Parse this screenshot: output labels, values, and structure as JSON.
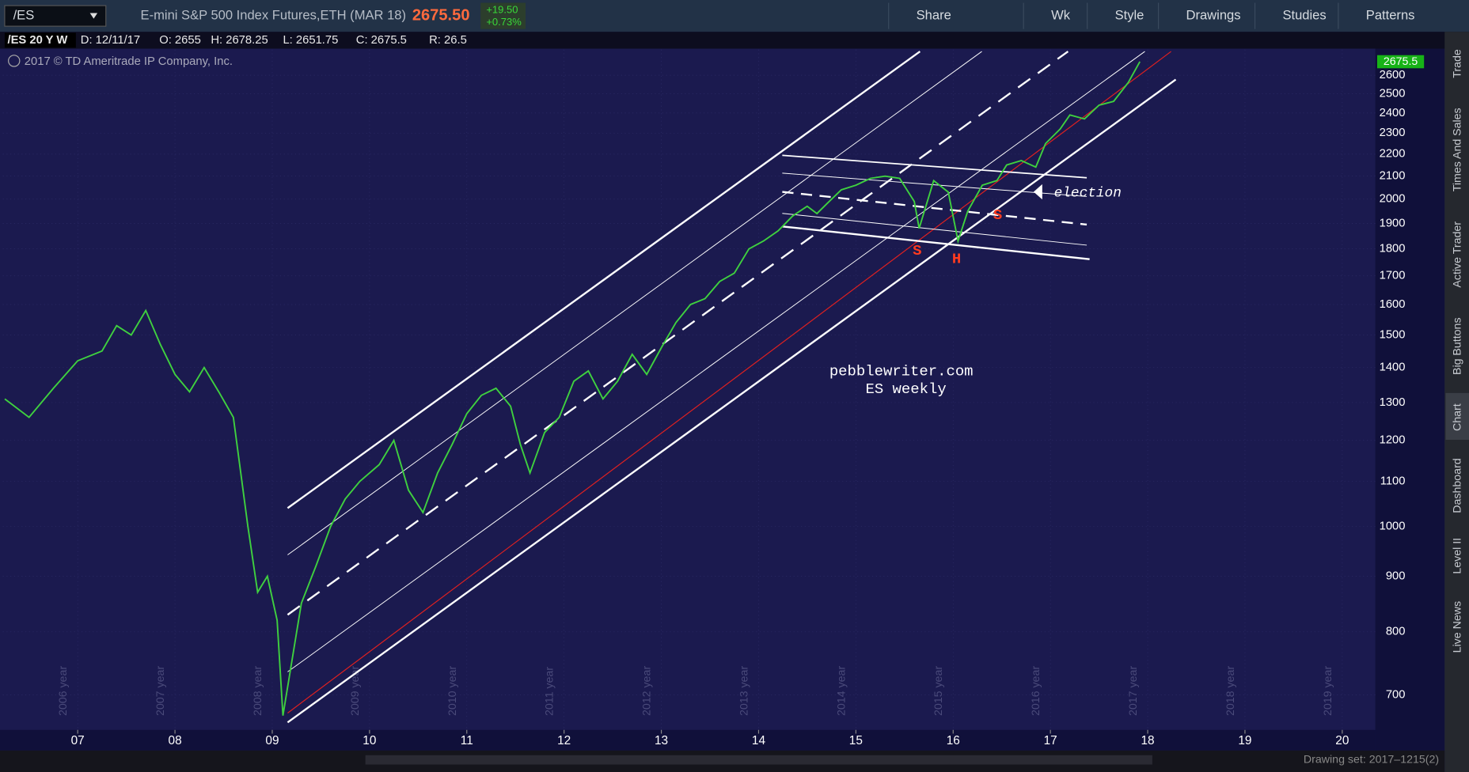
{
  "toolbar": {
    "symbol": "/ES",
    "description": "E-mini S&P 500 Index Futures,ETH (MAR 18)",
    "last": "2675.50",
    "change": "+19.50",
    "change_pct": "+0.73%",
    "buttons": [
      "Share",
      "Wk",
      "Style",
      "Drawings",
      "Studies",
      "Patterns"
    ]
  },
  "info_bar": {
    "symbol": "/ES 20 Y W",
    "date": "D: 12/11/17",
    "open": "O: 2655",
    "high": "H: 2678.25",
    "low": "L: 2651.75",
    "close": "C: 2675.5",
    "range": "R: 26.5"
  },
  "copyright": "2017 © TD Ameritrade IP Company, Inc.",
  "side_tabs": [
    "Trade",
    "Times And Sales",
    "Active Trader",
    "Big Buttons",
    "Chart",
    "Dashboard",
    "Level II",
    "Live News"
  ],
  "status": "Drawing set: 2017–1215(2)",
  "chart_data": {
    "type": "line",
    "log_scale": true,
    "grid": true,
    "color": "#3fd13f",
    "x": [
      2006.25,
      2006.5,
      2006.75,
      2007.0,
      2007.25,
      2007.4,
      2007.55,
      2007.7,
      2007.85,
      2008.0,
      2008.15,
      2008.3,
      2008.45,
      2008.6,
      2008.75,
      2008.85,
      2008.95,
      2009.05,
      2009.11,
      2009.3,
      2009.45,
      2009.6,
      2009.75,
      2009.9,
      2010.1,
      2010.25,
      2010.4,
      2010.55,
      2010.7,
      2010.85,
      2011.0,
      2011.15,
      2011.3,
      2011.45,
      2011.55,
      2011.65,
      2011.8,
      2011.95,
      2012.1,
      2012.25,
      2012.4,
      2012.55,
      2012.7,
      2012.85,
      2013.0,
      2013.15,
      2013.3,
      2013.45,
      2013.6,
      2013.75,
      2013.9,
      2014.05,
      2014.2,
      2014.35,
      2014.5,
      2014.6,
      2014.7,
      2014.85,
      2015.0,
      2015.15,
      2015.3,
      2015.45,
      2015.6,
      2015.65,
      2015.8,
      2015.95,
      2016.05,
      2016.15,
      2016.3,
      2016.45,
      2016.55,
      2016.7,
      2016.85,
      2016.95,
      2017.1,
      2017.2,
      2017.35,
      2017.5,
      2017.65,
      2017.8,
      2017.92
    ],
    "values": [
      1310,
      1260,
      1340,
      1420,
      1450,
      1530,
      1500,
      1580,
      1470,
      1380,
      1330,
      1400,
      1330,
      1260,
      1000,
      870,
      900,
      820,
      670,
      850,
      920,
      1000,
      1060,
      1100,
      1140,
      1200,
      1080,
      1030,
      1120,
      1190,
      1270,
      1320,
      1340,
      1290,
      1190,
      1120,
      1220,
      1260,
      1360,
      1390,
      1310,
      1360,
      1440,
      1380,
      1460,
      1540,
      1600,
      1620,
      1680,
      1710,
      1800,
      1830,
      1870,
      1930,
      1970,
      1940,
      1980,
      2040,
      2060,
      2090,
      2100,
      2090,
      1990,
      1880,
      2080,
      2030,
      1830,
      1950,
      2060,
      2080,
      2150,
      2170,
      2140,
      2250,
      2320,
      2390,
      2370,
      2440,
      2460,
      2560,
      2675.5
    ],
    "last_price": 2675.5,
    "ylim": [
      650,
      2745
    ],
    "yticks": [
      700,
      800,
      900,
      1000,
      1100,
      1200,
      1300,
      1400,
      1500,
      1600,
      1700,
      1800,
      1900,
      2000,
      2100,
      2200,
      2300,
      2400,
      2500,
      2600
    ],
    "xlim": [
      2006.23,
      2020.34
    ],
    "xticks": [
      {
        "value": 2007,
        "label": "07"
      },
      {
        "value": 2008,
        "label": "08"
      },
      {
        "value": 2009,
        "label": "09"
      },
      {
        "value": 2010,
        "label": "10"
      },
      {
        "value": 2011,
        "label": "11"
      },
      {
        "value": 2012,
        "label": "12"
      },
      {
        "value": 2013,
        "label": "13"
      },
      {
        "value": 2014,
        "label": "14"
      },
      {
        "value": 2015,
        "label": "15"
      },
      {
        "value": 2016,
        "label": "16"
      },
      {
        "value": 2017,
        "label": "17"
      },
      {
        "value": 2018,
        "label": "18"
      },
      {
        "value": 2019,
        "label": "19"
      },
      {
        "value": 2020,
        "label": "20"
      }
    ],
    "year_markers": [
      "2006 year",
      "2007 year",
      "2008 year",
      "2009 year",
      "2010 year",
      "2011 year",
      "2012 year",
      "2013 year",
      "2014 year",
      "2015 year",
      "2016 year",
      "2017 year",
      "2018 year",
      "2019 year"
    ],
    "annotations": [
      "pebblewriter.com",
      "ES weekly",
      "election",
      "S",
      "H",
      "S"
    ]
  }
}
